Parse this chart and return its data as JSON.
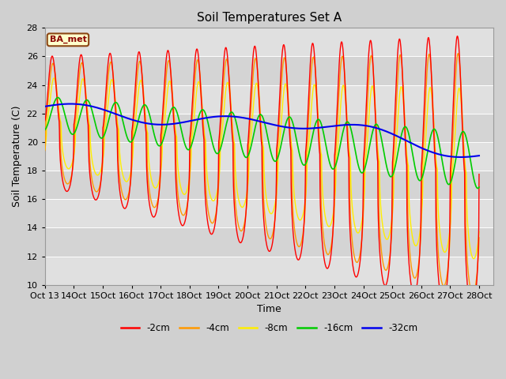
{
  "title": "Soil Temperatures Set A",
  "xlabel": "Time",
  "ylabel": "Soil Temperature (C)",
  "ylim": [
    10,
    28
  ],
  "yticks": [
    10,
    12,
    14,
    16,
    18,
    20,
    22,
    24,
    26,
    28
  ],
  "annotation": "BA_met",
  "colors": {
    "-2cm": "#ff0000",
    "-4cm": "#ff9900",
    "-8cm": "#ffee00",
    "-16cm": "#00cc00",
    "-32cm": "#0000ee"
  },
  "legend_labels": [
    "-2cm",
    "-4cm",
    "-8cm",
    "-16cm",
    "-32cm"
  ],
  "x_tick_labels": [
    "Oct 13",
    "Oct 14",
    "Oct 15",
    "Oct 16",
    "Oct 17",
    "Oct 18",
    "Oct 19",
    "Oct 20",
    "Oct 21",
    "Oct 22",
    "Oct 23",
    "Oct 24",
    "Oct 25",
    "Oct 26",
    "Oct 27",
    "Oct 28"
  ],
  "title_fontsize": 11,
  "axis_fontsize": 9,
  "tick_fontsize": 8
}
